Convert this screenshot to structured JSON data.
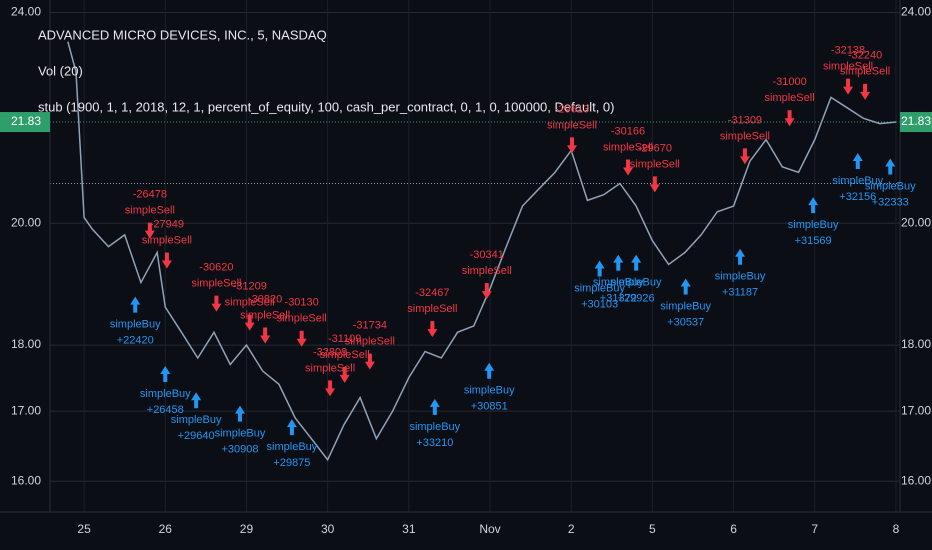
{
  "chart_data": {
    "type": "line",
    "title": "ADVANCED MICRO DEVICES, INC., 5, NASDAQ",
    "volume_label": "Vol (20)",
    "strategy_label": "stub (1900, 1, 1, 2018, 12, 1, percent_of_equity, 100, cash_per_contract, 0, 1, 0, 100000, Default, 0)",
    "log_scale": true,
    "grid": true,
    "color": "#8fa3b8",
    "last_price": 21.83,
    "last_price_color": "#2e9e6b",
    "ref_line": 20.7,
    "sell_color": "#f23645",
    "buy_color": "#2196f3",
    "xlim": [
      -0.42,
      10.05
    ],
    "ylim": [
      15.58,
      24.26
    ],
    "xticks": [
      {
        "value": 0,
        "label": "25"
      },
      {
        "value": 1,
        "label": "26"
      },
      {
        "value": 2,
        "label": "29"
      },
      {
        "value": 3,
        "label": "30"
      },
      {
        "value": 4,
        "label": "31"
      },
      {
        "value": 5,
        "label": "Nov"
      },
      {
        "value": 6,
        "label": "2"
      },
      {
        "value": 7,
        "label": "5"
      },
      {
        "value": 8,
        "label": "6"
      },
      {
        "value": 9,
        "label": "7"
      },
      {
        "value": 10,
        "label": "8"
      }
    ],
    "yticks": [
      {
        "value": 16,
        "label": "16.00"
      },
      {
        "value": 17,
        "label": "17.00"
      },
      {
        "value": 18,
        "label": "18.00"
      },
      {
        "value": 20,
        "label": "20.00"
      },
      {
        "value": 24,
        "label": "24.00"
      }
    ],
    "x": [
      -0.2,
      -0.1,
      0.0,
      0.1,
      0.3,
      0.5,
      0.7,
      0.9,
      1.0,
      1.2,
      1.4,
      1.6,
      1.8,
      2.0,
      2.2,
      2.4,
      2.6,
      2.8,
      3.0,
      3.2,
      3.4,
      3.6,
      3.8,
      4.0,
      4.2,
      4.4,
      4.6,
      4.8,
      5.0,
      5.2,
      5.4,
      5.6,
      5.8,
      6.0,
      6.2,
      6.4,
      6.6,
      6.8,
      7.0,
      7.2,
      7.4,
      7.6,
      7.8,
      8.0,
      8.2,
      8.4,
      8.6,
      8.8,
      9.0,
      9.2,
      9.4,
      9.6,
      9.8,
      10.0
    ],
    "values": [
      23.4,
      22.8,
      20.1,
      19.9,
      19.6,
      19.8,
      19.0,
      19.5,
      18.6,
      18.2,
      17.8,
      18.2,
      17.7,
      18.0,
      17.6,
      17.4,
      16.9,
      16.6,
      16.3,
      16.8,
      17.2,
      16.6,
      17.0,
      17.5,
      17.9,
      17.8,
      18.2,
      18.3,
      18.9,
      19.6,
      20.3,
      20.6,
      20.9,
      21.3,
      20.4,
      20.5,
      20.7,
      20.3,
      19.7,
      19.3,
      19.5,
      19.8,
      20.2,
      20.3,
      21.1,
      21.5,
      21.0,
      20.9,
      21.5,
      22.3,
      22.1,
      21.9,
      21.8,
      21.83
    ],
    "signals": [
      {
        "side": "simpleSell",
        "pnl": -26478,
        "x": 0.81,
        "price": 19.6
      },
      {
        "side": "simpleSell",
        "pnl": -27949,
        "x": 1.02,
        "price": 19.1
      },
      {
        "side": "simpleSell",
        "pnl": -30620,
        "x": 1.63,
        "price": 18.4
      },
      {
        "side": "simpleSell",
        "pnl": -31209,
        "x": 2.04,
        "price": 18.1
      },
      {
        "side": "simpleSell",
        "pnl": -30820,
        "x": 2.23,
        "price": 17.9
      },
      {
        "side": "simpleSell",
        "pnl": -30130,
        "x": 2.68,
        "price": 17.85
      },
      {
        "side": "simpleSell",
        "pnl": -32809,
        "x": 3.03,
        "price": 17.1
      },
      {
        "side": "simpleSell",
        "pnl": -31109,
        "x": 3.21,
        "price": 17.3
      },
      {
        "side": "simpleSell",
        "pnl": -31734,
        "x": 3.52,
        "price": 17.5
      },
      {
        "side": "simpleSell",
        "pnl": -32467,
        "x": 4.29,
        "price": 18.0
      },
      {
        "side": "simpleSell",
        "pnl": -30341,
        "x": 4.96,
        "price": 18.6
      },
      {
        "side": "simpleSell",
        "pnl": -29613,
        "x": 6.01,
        "price": 21.1
      },
      {
        "side": "simpleSell",
        "pnl": -30166,
        "x": 6.7,
        "price": 20.7
      },
      {
        "side": "simpleSell",
        "pnl": -29670,
        "x": 7.03,
        "price": 20.4
      },
      {
        "side": "simpleSell",
        "pnl": -31309,
        "x": 8.14,
        "price": 20.9
      },
      {
        "side": "simpleSell",
        "pnl": -31000,
        "x": 8.69,
        "price": 21.6
      },
      {
        "side": "simpleSell",
        "pnl": -32138,
        "x": 9.41,
        "price": 22.2
      },
      {
        "side": "simpleSell",
        "pnl": -32240,
        "x": 9.62,
        "price": 22.1
      },
      {
        "side": "simpleBuy",
        "pnl": 22420,
        "pnl_label": "+22420",
        "x": 0.63,
        "price": 18.9
      },
      {
        "side": "simpleBuy",
        "pnl": 26458,
        "pnl_label": "+26458",
        "x": 1.0,
        "price": 17.8
      },
      {
        "side": "simpleBuy",
        "pnl": 29640,
        "pnl_label": "+29640",
        "x": 1.38,
        "price": 17.4
      },
      {
        "side": "simpleBuy",
        "pnl": 30908,
        "pnl_label": "+30908",
        "x": 1.92,
        "price": 17.2
      },
      {
        "side": "simpleBuy",
        "pnl": 29875,
        "pnl_label": "+29875",
        "x": 2.56,
        "price": 17.0
      },
      {
        "side": "simpleBuy",
        "pnl": 33210,
        "pnl_label": "+33210",
        "x": 4.32,
        "price": 17.3
      },
      {
        "side": "simpleBuy",
        "pnl": 30851,
        "pnl_label": "+30851",
        "x": 4.99,
        "price": 17.85
      },
      {
        "side": "simpleBuy",
        "pnl": 30103,
        "pnl_label": "+30103",
        "x": 6.35,
        "price": 19.5
      },
      {
        "side": "simpleBuy",
        "pnl": 31372,
        "pnl_label": "+31372",
        "x": 6.58,
        "price": 19.6
      },
      {
        "side": "simpleBuy",
        "pnl": 29926,
        "pnl_label": "+29926",
        "x": 6.8,
        "price": 19.6
      },
      {
        "side": "simpleBuy",
        "pnl": 30537,
        "pnl_label": "+30537",
        "x": 7.41,
        "price": 19.2
      },
      {
        "side": "simpleBuy",
        "pnl": 31187,
        "pnl_label": "+31187",
        "x": 8.08,
        "price": 19.7
      },
      {
        "side": "simpleBuy",
        "pnl": 31569,
        "pnl_label": "+31569",
        "x": 8.98,
        "price": 20.6
      },
      {
        "side": "simpleBuy",
        "pnl": 32156,
        "pnl_label": "+32156",
        "x": 9.53,
        "price": 21.4
      },
      {
        "side": "simpleBuy",
        "pnl": 32333,
        "pnl_label": "+32333",
        "x": 9.93,
        "price": 21.3
      }
    ]
  }
}
